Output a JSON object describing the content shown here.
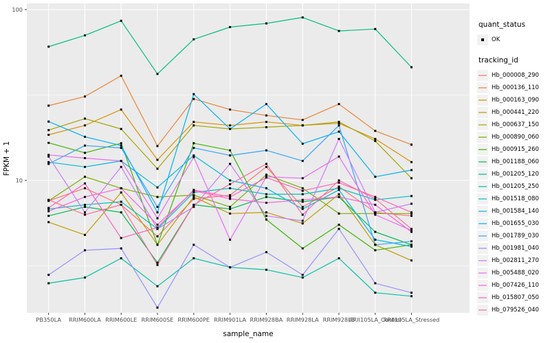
{
  "chart_data": {
    "type": "line",
    "title": "",
    "xlabel": "sample_name",
    "ylabel": "FPKM + 1",
    "y_scale": "log10",
    "y_ticks": [
      10,
      100
    ],
    "y_minor_ticks": [
      3.162,
      31.623
    ],
    "ylim": [
      1.65,
      108
    ],
    "grid": "on",
    "panel_background": "#EBEBEB",
    "gridline_color": "#FFFFFF",
    "marker": "black-square",
    "categories": [
      "PB350LA",
      "RRIM600LA",
      "RRIM600LE",
      "RRIM600SE",
      "RRIM600PE",
      "RRIM901LA",
      "RRIM928BA",
      "RRIM928LA",
      "RRIM928LB",
      "RRII105LA_Control",
      "RRII105LA_Stressed"
    ],
    "series": [
      {
        "name": "Hb_000008_290",
        "color": "#F8766D",
        "values": [
          7.6,
          9.0,
          7.2,
          4.7,
          7.8,
          8.2,
          12.0,
          7.0,
          9.2,
          6.5,
          6.2
        ]
      },
      {
        "name": "Hb_000136_110",
        "color": "#EA8331",
        "values": [
          27.4,
          31.0,
          41.0,
          15.9,
          30.0,
          26.0,
          24.0,
          22.6,
          28.0,
          19.5,
          16.2
        ]
      },
      {
        "name": "Hb_000163_090",
        "color": "#D89000",
        "values": [
          18.5,
          21.0,
          26.0,
          13.2,
          22.0,
          21.0,
          22.0,
          21.0,
          21.6,
          17.5,
          12.8
        ]
      },
      {
        "name": "Hb_000441_220",
        "color": "#C09B00",
        "values": [
          5.7,
          4.8,
          8.5,
          4.2,
          8.0,
          6.4,
          6.5,
          5.6,
          8.3,
          4.2,
          3.4
        ]
      },
      {
        "name": "Hb_000637_150",
        "color": "#A3A500",
        "values": [
          19.7,
          23.0,
          20.0,
          11.7,
          21.0,
          20.0,
          20.5,
          21.0,
          22.0,
          17.0,
          10.3
        ]
      },
      {
        "name": "Hb_000890_060",
        "color": "#7CAE00",
        "values": [
          7.6,
          10.5,
          9.0,
          8.0,
          8.2,
          7.0,
          10.8,
          9.0,
          6.4,
          6.4,
          6.4
        ]
      },
      {
        "name": "Hb_000915_260",
        "color": "#39B600",
        "values": [
          16.6,
          14.5,
          16.5,
          4.2,
          16.5,
          15.0,
          5.9,
          4.0,
          5.5,
          3.9,
          4.2
        ]
      },
      {
        "name": "Hb_001188_060",
        "color": "#00BB4E",
        "values": [
          6.2,
          7.0,
          6.5,
          3.3,
          7.2,
          6.8,
          8.0,
          7.5,
          8.0,
          5.0,
          4.2
        ]
      },
      {
        "name": "Hb_001205_120",
        "color": "#00BF7D",
        "values": [
          60.7,
          70.6,
          86.0,
          42.0,
          67.0,
          79.0,
          83.0,
          90.0,
          75.0,
          77.0,
          46.0
        ]
      },
      {
        "name": "Hb_001205_250",
        "color": "#00C1A3",
        "values": [
          2.5,
          2.7,
          3.5,
          2.4,
          3.5,
          3.1,
          3.0,
          2.7,
          3.5,
          2.2,
          2.1
        ]
      },
      {
        "name": "Hb_001518_080",
        "color": "#00BFC4",
        "values": [
          6.8,
          7.2,
          7.5,
          5.2,
          8.5,
          9.0,
          8.3,
          8.3,
          9.0,
          7.7,
          8.1
        ]
      },
      {
        "name": "Hb_001584_140",
        "color": "#00BAE0",
        "values": [
          12.8,
          12.0,
          13.0,
          9.1,
          14.0,
          10.0,
          9.0,
          6.8,
          8.8,
          4.5,
          4.1
        ]
      },
      {
        "name": "Hb_001655_030",
        "color": "#00B0F6",
        "values": [
          22.1,
          18.0,
          16.0,
          6.5,
          32.0,
          20.0,
          28.0,
          16.4,
          19.3,
          10.5,
          11.5
        ]
      },
      {
        "name": "Hb_001789_030",
        "color": "#35A2FF",
        "values": [
          12.5,
          16.0,
          15.5,
          7.0,
          15.5,
          14.0,
          15.0,
          13.0,
          21.0,
          4.2,
          4.4
        ]
      },
      {
        "name": "Hb_001981_040",
        "color": "#9590FF",
        "values": [
          2.8,
          3.9,
          4.0,
          1.8,
          4.2,
          3.1,
          3.8,
          2.8,
          5.2,
          2.5,
          2.2
        ]
      },
      {
        "name": "Hb_002811_270",
        "color": "#C77CFF",
        "values": [
          13.8,
          6.5,
          12.0,
          5.2,
          7.0,
          12.5,
          6.2,
          5.8,
          17.5,
          6.5,
          7.3
        ]
      },
      {
        "name": "Hb_005488_020",
        "color": "#E76BF3",
        "values": [
          14.1,
          13.5,
          13.0,
          6.0,
          13.7,
          4.5,
          10.5,
          10.3,
          13.8,
          6.3,
          5.1
        ]
      },
      {
        "name": "Hb_007426_110",
        "color": "#FA62DB",
        "values": [
          6.6,
          8.0,
          9.0,
          5.5,
          8.7,
          7.8,
          7.4,
          7.7,
          8.0,
          7.2,
          5.0
        ]
      },
      {
        "name": "Hb_015807_050",
        "color": "#FF62BC",
        "values": [
          6.9,
          9.6,
          4.6,
          5.3,
          8.8,
          8.0,
          10.4,
          8.7,
          9.7,
          8.0,
          6.5
        ]
      },
      {
        "name": "Hb_079526_040",
        "color": "#FF6A98",
        "values": [
          7.7,
          6.3,
          7.2,
          3.2,
          7.2,
          9.5,
          12.5,
          6.3,
          10.0,
          7.8,
          5.2
        ]
      }
    ],
    "legend_position": "right"
  },
  "legend_quant": {
    "title": "quant_status",
    "items": [
      {
        "label": "OK"
      }
    ]
  },
  "legend_tracking": {
    "title": "tracking_id"
  }
}
